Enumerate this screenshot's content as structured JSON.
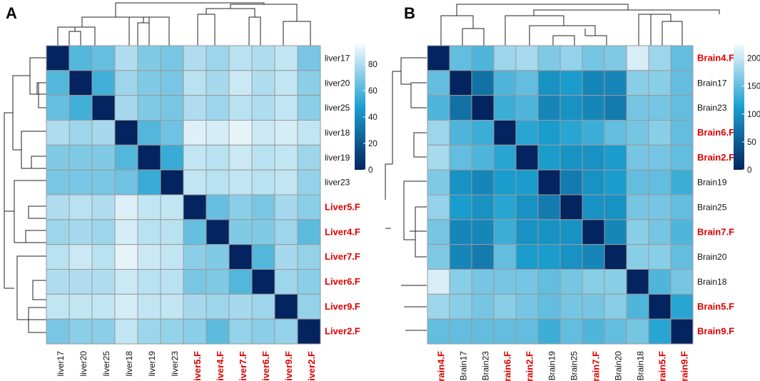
{
  "panels": [
    {
      "label": "A",
      "chart_data": {
        "type": "heatmap",
        "labels": [
          "liver17",
          "liver20",
          "liver25",
          "liver18",
          "liver19",
          "liver23",
          "Liver5.F",
          "Liver4.F",
          "Liver7.F",
          "Liver6.F",
          "Liver9.F",
          "Liver2.F"
        ],
        "highlighted": [
          "Liver5.F",
          "Liver4.F",
          "Liver7.F",
          "Liver6.F",
          "Liver9.F",
          "Liver2.F"
        ],
        "values": [
          [
            0,
            60,
            64,
            80,
            70,
            68,
            80,
            76,
            82,
            80,
            84,
            68
          ],
          [
            60,
            0,
            56,
            76,
            70,
            68,
            82,
            78,
            86,
            80,
            84,
            72
          ],
          [
            64,
            56,
            0,
            78,
            70,
            68,
            80,
            76,
            82,
            80,
            84,
            72
          ],
          [
            80,
            76,
            78,
            0,
            60,
            66,
            90,
            88,
            92,
            86,
            88,
            84
          ],
          [
            70,
            70,
            70,
            60,
            0,
            54,
            84,
            82,
            86,
            82,
            84,
            76
          ],
          [
            68,
            68,
            68,
            66,
            54,
            0,
            84,
            82,
            84,
            82,
            84,
            74
          ],
          [
            80,
            82,
            80,
            90,
            84,
            84,
            0,
            64,
            72,
            68,
            78,
            72
          ],
          [
            76,
            78,
            76,
            88,
            82,
            82,
            64,
            0,
            70,
            70,
            76,
            62
          ],
          [
            82,
            86,
            82,
            92,
            86,
            84,
            72,
            70,
            0,
            60,
            78,
            74
          ],
          [
            80,
            80,
            80,
            86,
            82,
            82,
            68,
            70,
            60,
            0,
            76,
            72
          ],
          [
            84,
            84,
            84,
            88,
            84,
            84,
            78,
            76,
            78,
            76,
            0,
            74
          ],
          [
            68,
            72,
            72,
            84,
            76,
            74,
            72,
            62,
            74,
            72,
            74,
            0
          ]
        ],
        "color_scale": {
          "min": 0,
          "max": 95,
          "ticks": [
            0,
            20,
            40,
            60,
            80
          ]
        },
        "colors": [
          "#04245f",
          "#1a9fd0",
          "#f4fafd"
        ]
      }
    },
    {
      "label": "B",
      "chart_data": {
        "type": "heatmap",
        "labels": [
          "Brain4.F",
          "Brain17",
          "Brain23",
          "Brain6.F",
          "Brain2.F",
          "Brain19",
          "Brain25",
          "Brain7.F",
          "Brain20",
          "Brain18",
          "Brain5.F",
          "Brain9.F"
        ],
        "highlighted": [
          "Brain4.F",
          "Brain6.F",
          "Brain2.F",
          "Brain7.F",
          "Brain5.F",
          "Brain9.F"
        ],
        "values": [
          [
            0,
            150,
            140,
            180,
            185,
            165,
            175,
            160,
            165,
            210,
            180,
            150
          ],
          [
            150,
            0,
            70,
            140,
            150,
            100,
            110,
            90,
            90,
            170,
            170,
            150
          ],
          [
            140,
            70,
            0,
            130,
            140,
            90,
            100,
            90,
            80,
            160,
            160,
            150
          ],
          [
            180,
            140,
            130,
            0,
            120,
            110,
            120,
            130,
            150,
            160,
            170,
            150
          ],
          [
            185,
            150,
            140,
            120,
            0,
            110,
            100,
            100,
            110,
            160,
            160,
            150
          ],
          [
            165,
            100,
            90,
            110,
            110,
            0,
            80,
            100,
            110,
            150,
            150,
            130
          ],
          [
            175,
            110,
            100,
            120,
            100,
            80,
            0,
            100,
            100,
            160,
            160,
            150
          ],
          [
            160,
            90,
            90,
            130,
            100,
            100,
            100,
            0,
            90,
            170,
            160,
            140
          ],
          [
            165,
            90,
            80,
            150,
            110,
            110,
            100,
            90,
            0,
            170,
            170,
            150
          ],
          [
            210,
            170,
            160,
            160,
            160,
            150,
            160,
            170,
            170,
            0,
            140,
            160
          ],
          [
            180,
            170,
            160,
            170,
            160,
            150,
            160,
            160,
            170,
            140,
            0,
            120
          ],
          [
            150,
            150,
            150,
            150,
            150,
            130,
            150,
            140,
            150,
            160,
            120,
            0
          ]
        ],
        "color_scale": {
          "min": 0,
          "max": 225,
          "ticks": [
            0,
            50,
            100,
            150,
            200
          ]
        },
        "colors": [
          "#04245f",
          "#1a9fd0",
          "#f4fafd"
        ]
      }
    }
  ]
}
